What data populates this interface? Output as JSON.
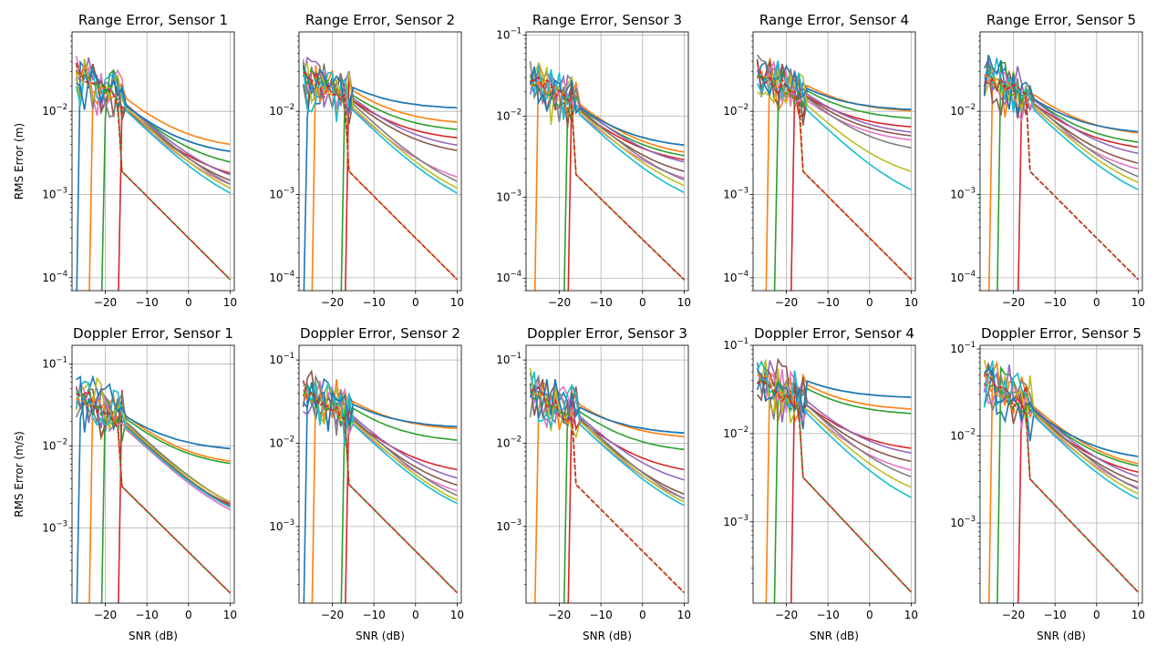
{
  "figure": {
    "palette": [
      "#1f77b4",
      "#ff7f0e",
      "#2ca02c",
      "#d62728",
      "#9467bd",
      "#8c564b",
      "#e377c2",
      "#7f7f7f",
      "#bcbd22",
      "#17becf"
    ]
  },
  "chart_data": [
    {
      "type": "line",
      "title": "Range Error, Sensor 1",
      "xlabel": "",
      "ylabel": "RMS Error (m)",
      "xlim": [
        -28,
        11
      ],
      "ylog": true,
      "ylim": [
        7e-05,
        0.09
      ],
      "xticks": [
        -20,
        -10,
        0,
        10
      ],
      "yticks": [
        0.0001,
        0.001,
        0.01
      ],
      "grid": true,
      "series": []
    },
    {
      "type": "line",
      "title": "Range Error, Sensor 2",
      "xlabel": "",
      "ylabel": "",
      "xlim": [
        -28,
        11
      ],
      "ylog": true,
      "ylim": [
        7e-05,
        0.09
      ],
      "xticks": [
        -20,
        -10,
        0,
        10
      ],
      "yticks": [
        0.0001,
        0.001,
        0.01
      ],
      "grid": true,
      "series": []
    },
    {
      "type": "line",
      "title": "Range Error, Sensor 3",
      "xlabel": "",
      "ylabel": "",
      "xlim": [
        -28,
        11
      ],
      "ylog": true,
      "ylim": [
        7e-05,
        0.11
      ],
      "xticks": [
        -20,
        -10,
        0,
        10
      ],
      "yticks": [
        0.0001,
        0.001,
        0.01,
        0.1
      ],
      "grid": true,
      "series": []
    },
    {
      "type": "line",
      "title": "Range Error, Sensor 4",
      "xlabel": "",
      "ylabel": "",
      "xlim": [
        -28,
        11
      ],
      "ylog": true,
      "ylim": [
        7e-05,
        0.09
      ],
      "xticks": [
        -20,
        -10,
        0,
        10
      ],
      "yticks": [
        0.0001,
        0.001,
        0.01
      ],
      "grid": true,
      "series": []
    },
    {
      "type": "line",
      "title": "Range Error, Sensor 5",
      "xlabel": "",
      "ylabel": "",
      "xlim": [
        -28,
        11
      ],
      "ylog": true,
      "ylim": [
        7e-05,
        0.09
      ],
      "xticks": [
        -20,
        -10,
        0,
        10
      ],
      "yticks": [
        0.0001,
        0.001,
        0.01
      ],
      "grid": true,
      "series": []
    },
    {
      "type": "line",
      "title": "Doppler Error, Sensor 1",
      "xlabel": "SNR (dB)",
      "ylabel": "RMS Error (m/s)",
      "xlim": [
        -28,
        11
      ],
      "ylog": true,
      "ylim": [
        0.00012,
        0.17
      ],
      "xticks": [
        -20,
        -10,
        0,
        10
      ],
      "yticks": [
        0.001,
        0.01,
        0.1
      ],
      "grid": true,
      "series": []
    },
    {
      "type": "line",
      "title": "Doppler Error, Sensor 2",
      "xlabel": "SNR (dB)",
      "ylabel": "",
      "xlim": [
        -28,
        11
      ],
      "ylog": true,
      "ylim": [
        0.00012,
        0.15
      ],
      "xticks": [
        -20,
        -10,
        0,
        10
      ],
      "yticks": [
        0.001,
        0.01,
        0.1
      ],
      "grid": true,
      "series": []
    },
    {
      "type": "line",
      "title": "Doppler Error, Sensor 3",
      "xlabel": "SNR (dB)",
      "ylabel": "",
      "xlim": [
        -28,
        11
      ],
      "ylog": true,
      "ylim": [
        0.00012,
        0.15
      ],
      "xticks": [
        -20,
        -10,
        0,
        10
      ],
      "yticks": [
        0.001,
        0.01,
        0.1
      ],
      "grid": true,
      "series": []
    },
    {
      "type": "line",
      "title": "Doppler Error, Sensor 4",
      "xlabel": "SNR (dB)",
      "ylabel": "",
      "xlim": [
        -28,
        11
      ],
      "ylog": true,
      "ylim": [
        0.00012,
        0.1
      ],
      "xticks": [
        -20,
        -10,
        0,
        10
      ],
      "yticks": [
        0.001,
        0.01,
        0.1
      ],
      "grid": true,
      "series": []
    },
    {
      "type": "line",
      "title": "Doppler Error, Sensor 5",
      "xlabel": "SNR (dB)",
      "ylabel": "",
      "xlim": [
        -28,
        11
      ],
      "ylog": true,
      "ylim": [
        0.00012,
        0.11
      ],
      "xticks": [
        -20,
        -10,
        0,
        10
      ],
      "yticks": [
        0.001,
        0.01,
        0.1
      ],
      "grid": true,
      "series": []
    }
  ]
}
